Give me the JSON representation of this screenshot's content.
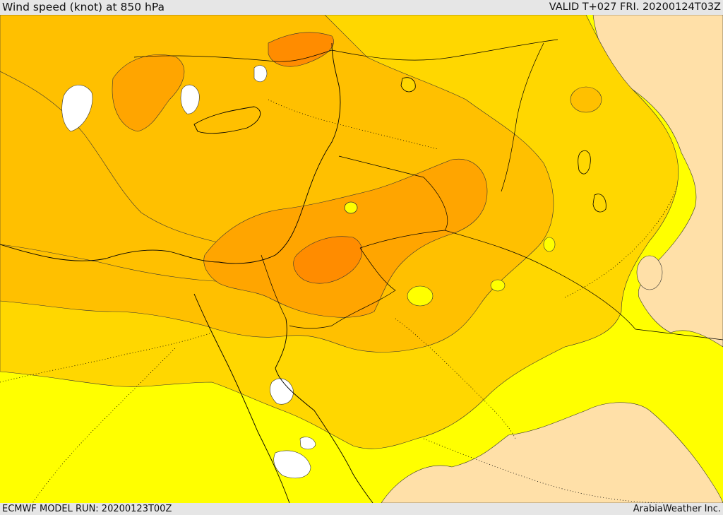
{
  "header": {
    "title": "Wind speed (knot) at 850 hPa",
    "valid": "VALID T+027 FRI. 20200124T03Z"
  },
  "footer": {
    "model_run": "ECMWF MODEL RUN: 20200123T00Z",
    "credit": "ArabiaWeather Inc."
  },
  "map": {
    "colors": {
      "white": "#ffffff",
      "pale": "#ffe0a8",
      "yellow": "#ffff00",
      "gold": "#ffd700",
      "amber": "#ffc000",
      "orange": "#ffa500",
      "dark_orange": "#ff8c00",
      "red_orange": "#ff6a00"
    }
  }
}
